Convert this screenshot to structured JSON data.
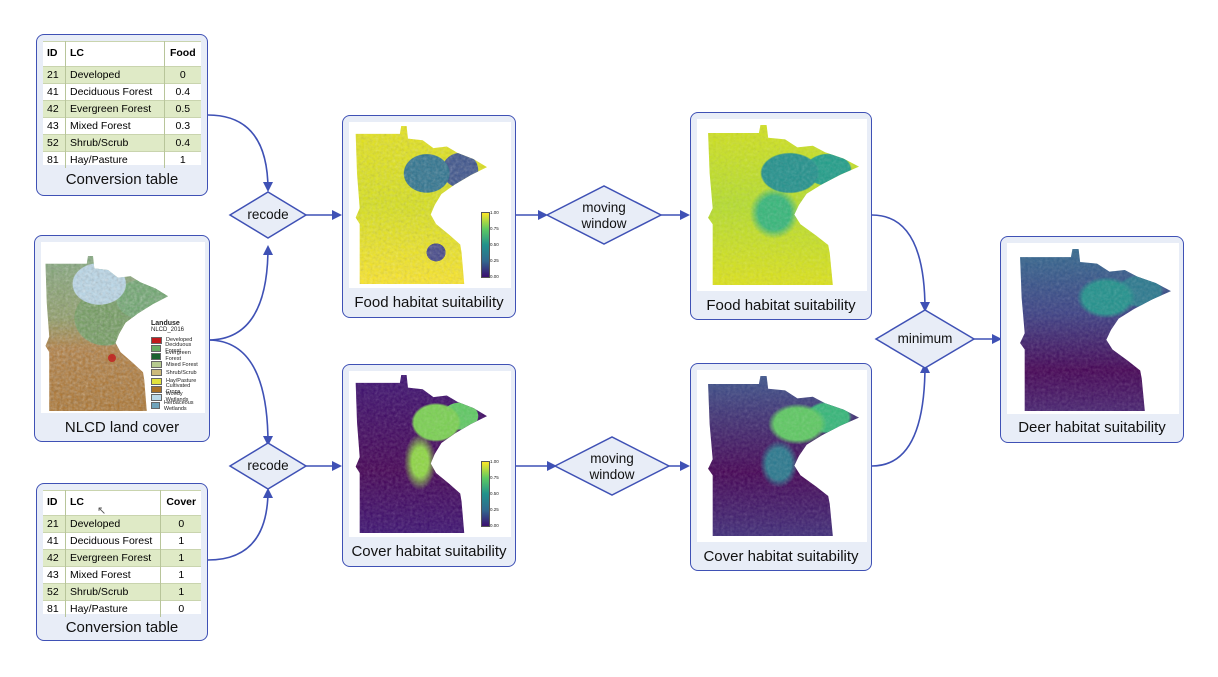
{
  "food_table": {
    "headers": [
      "ID",
      "LC",
      "Food"
    ],
    "rows": [
      [
        "21",
        "Developed",
        "0"
      ],
      [
        "41",
        "Deciduous Forest",
        "0.4"
      ],
      [
        "42",
        "Evergreen Forest",
        "0.5"
      ],
      [
        "43",
        "Mixed Forest",
        "0.3"
      ],
      [
        "52",
        "Shrub/Scrub",
        "0.4"
      ],
      [
        "81",
        "Hay/Pasture",
        "1"
      ]
    ],
    "caption": "Conversion table"
  },
  "cover_table": {
    "headers": [
      "ID",
      "LC",
      "Cover"
    ],
    "rows": [
      [
        "21",
        "Developed",
        "0"
      ],
      [
        "41",
        "Deciduous Forest",
        "1"
      ],
      [
        "42",
        "Evergreen Forest",
        "1"
      ],
      [
        "43",
        "Mixed Forest",
        "1"
      ],
      [
        "52",
        "Shrub/Scrub",
        "1"
      ],
      [
        "81",
        "Hay/Pasture",
        "0"
      ]
    ],
    "caption": "Conversion table"
  },
  "nlcd": {
    "caption": "NLCD land cover",
    "legend_title": "Landuse",
    "legend_subtitle": "NLCD_2016",
    "legend": [
      {
        "label": "Developed",
        "color": "#c0191c"
      },
      {
        "label": "Deciduous Forest",
        "color": "#68ab63"
      },
      {
        "label": "Evergreen Forest",
        "color": "#1c6330"
      },
      {
        "label": "Mixed Forest",
        "color": "#b5c98f"
      },
      {
        "label": "Shrub/Scrub",
        "color": "#ccba7c"
      },
      {
        "label": "Hay/Pasture",
        "color": "#e3e23d"
      },
      {
        "label": "Cultivated Crops",
        "color": "#aa7028"
      },
      {
        "label": "Woody Wetlands",
        "color": "#bad9eb"
      },
      {
        "label": "Herbaceous Wetlands",
        "color": "#70a3ba"
      }
    ]
  },
  "ops": {
    "recode_top": "recode",
    "recode_bottom": "recode",
    "moving_window_top": [
      "moving",
      "window"
    ],
    "moving_window_bottom": [
      "moving",
      "window"
    ],
    "minimum": "minimum"
  },
  "outputs": {
    "food1": "Food habitat suitability",
    "cover1": "Cover habitat suitability",
    "food2": "Food habitat suitability",
    "cover2": "Cover habitat suitability",
    "deer": "Deer habitat suitability"
  },
  "colorbar_ticks": [
    "1.00",
    "0.75",
    "0.50",
    "0.25",
    "0.00"
  ],
  "colors": {
    "accent": "#3f51b5",
    "box_fill": "#e8edf7",
    "viridis_dark": "#440154",
    "viridis_mid": "#21918c",
    "viridis_bright": "#fde725"
  }
}
